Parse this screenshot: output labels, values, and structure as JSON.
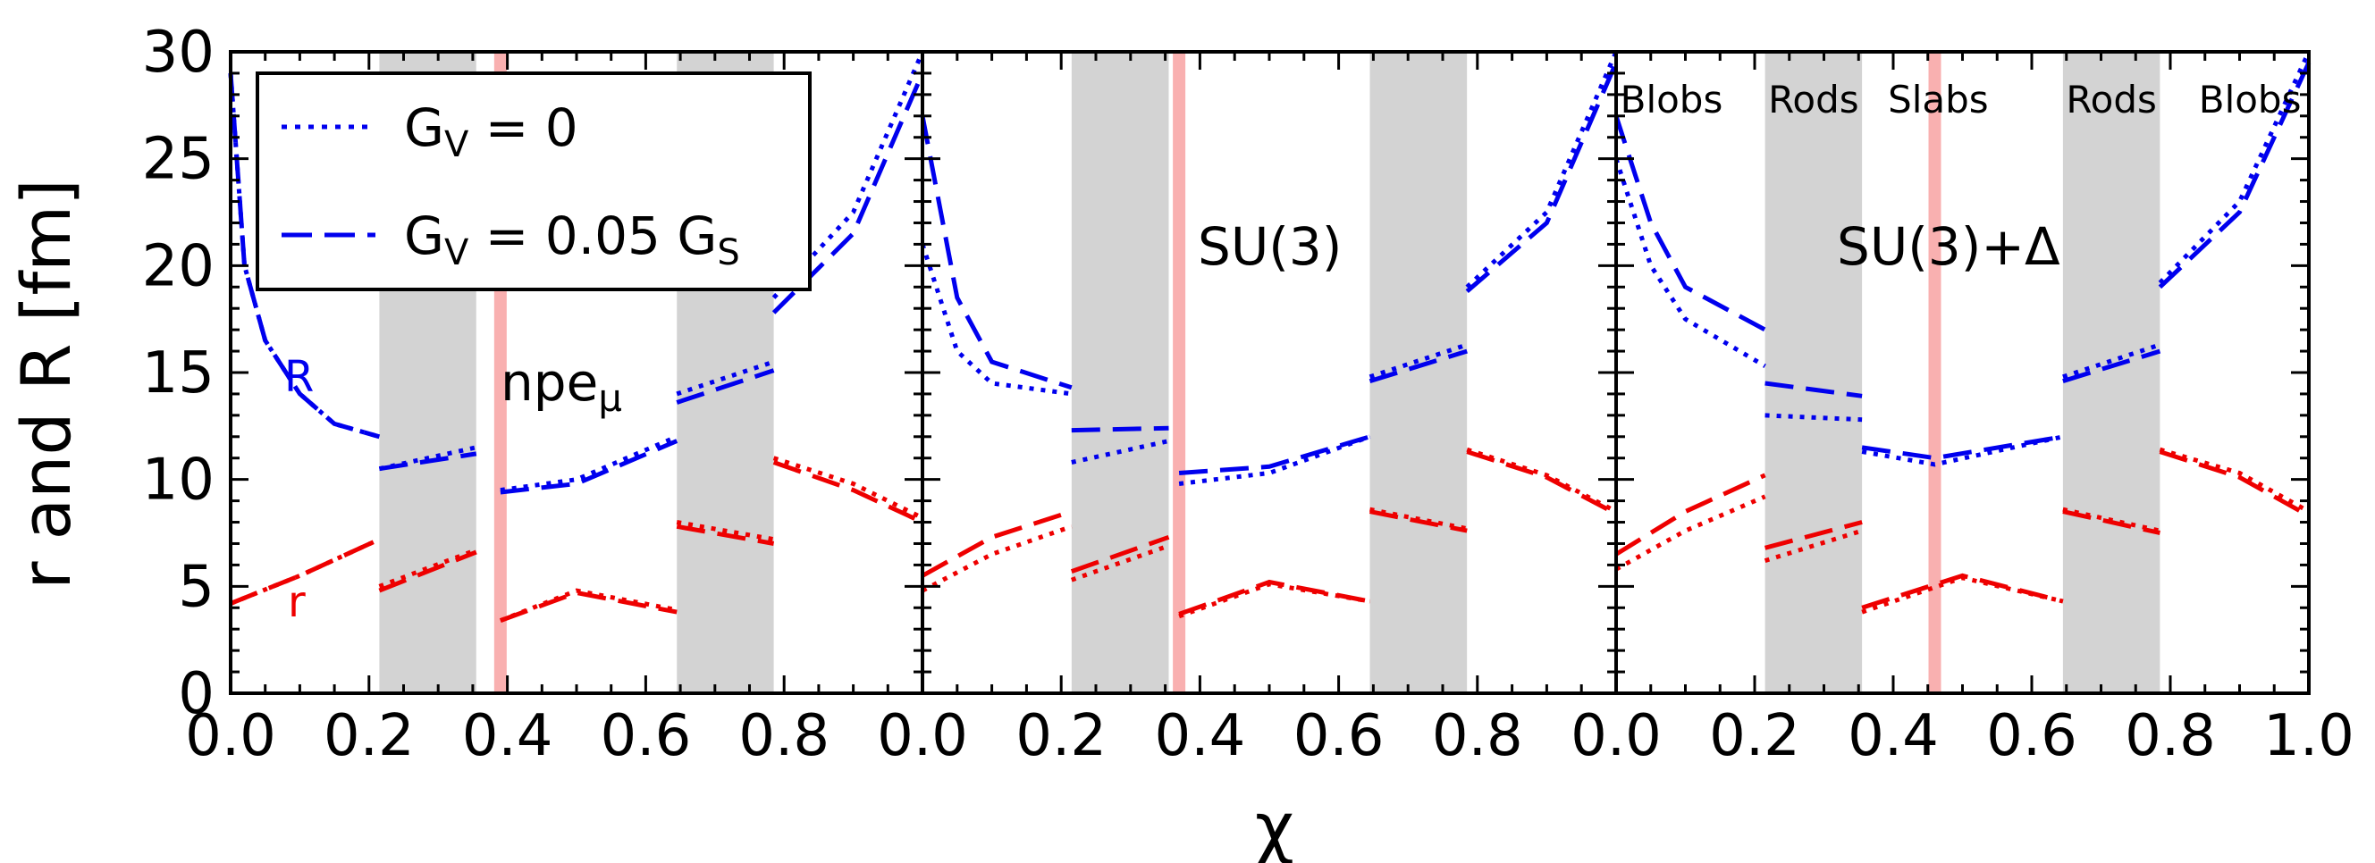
{
  "chart_data": {
    "type": "line",
    "ylabel": "r and R [fm]",
    "xlabel": "χ",
    "ylim": [
      0,
      30
    ],
    "yticks": [
      0,
      5,
      10,
      15,
      20,
      25,
      30
    ],
    "xticks": [
      0.0,
      0.2,
      0.4,
      0.6,
      0.8
    ],
    "xticks_last_panel": [
      0.0,
      0.2,
      0.4,
      0.6,
      0.8,
      1.0
    ],
    "xlim": [
      0,
      1
    ],
    "colors": {
      "R": "#0000ee",
      "r": "#ee0000",
      "shade": "#d3d3d3",
      "center_line": "#f9b0b0"
    },
    "legend": {
      "entries": [
        {
          "label": "G",
          "sub": "V",
          "rest": " = 0",
          "style": "dotted"
        },
        {
          "label": "G",
          "sub": "V",
          "rest": " = 0.05 G",
          "sub2": "S",
          "style": "dashed"
        }
      ]
    },
    "region_labels": [
      "Blobs",
      "Rods",
      "Slabs",
      "Rods",
      "Blobs"
    ],
    "panels": [
      {
        "label": "npe",
        "label_sub": "μ",
        "curve_label_R": "R",
        "curve_label_r": "r",
        "shaded": [
          [
            0.215,
            0.355
          ],
          [
            0.645,
            0.785
          ]
        ],
        "center": 0.39,
        "series": [
          {
            "name": "R, G_V = 0",
            "color": "R",
            "style": "dotted",
            "segments": [
              [
                [
                  0.0,
                  29
                ],
                [
                  0.02,
                  20
                ],
                [
                  0.05,
                  16.5
                ],
                [
                  0.1,
                  14
                ],
                [
                  0.15,
                  12.6
                ],
                [
                  0.215,
                  12
                ]
              ],
              [
                [
                  0.215,
                  10.5
                ],
                [
                  0.355,
                  11.5
                ]
              ],
              [
                [
                  0.39,
                  9.5
                ],
                [
                  0.5,
                  10
                ],
                [
                  0.645,
                  12
                ]
              ],
              [
                [
                  0.645,
                  14
                ],
                [
                  0.785,
                  15.5
                ]
              ],
              [
                [
                  0.785,
                  18.5
                ],
                [
                  0.9,
                  22.5
                ],
                [
                  1.0,
                  30
                ]
              ]
            ]
          },
          {
            "name": "R, G_V = 0.05 G_S",
            "color": "R",
            "style": "dashed",
            "segments": [
              [
                [
                  0.0,
                  29
                ],
                [
                  0.02,
                  20
                ],
                [
                  0.05,
                  16.5
                ],
                [
                  0.1,
                  14
                ],
                [
                  0.15,
                  12.6
                ],
                [
                  0.215,
                  12
                ]
              ],
              [
                [
                  0.215,
                  10.5
                ],
                [
                  0.355,
                  11.2
                ]
              ],
              [
                [
                  0.39,
                  9.4
                ],
                [
                  0.5,
                  9.8
                ],
                [
                  0.645,
                  11.8
                ]
              ],
              [
                [
                  0.645,
                  13.6
                ],
                [
                  0.785,
                  15.1
                ]
              ],
              [
                [
                  0.785,
                  17.8
                ],
                [
                  0.9,
                  21.5
                ],
                [
                  1.0,
                  29
                ]
              ]
            ]
          },
          {
            "name": "r, G_V = 0",
            "color": "r",
            "style": "dotted",
            "segments": [
              [
                [
                  0.0,
                  4.2
                ],
                [
                  0.1,
                  5.5
                ],
                [
                  0.215,
                  7.2
                ]
              ],
              [
                [
                  0.215,
                  5
                ],
                [
                  0.355,
                  6.7
                ]
              ],
              [
                [
                  0.39,
                  3.4
                ],
                [
                  0.5,
                  4.8
                ],
                [
                  0.645,
                  3.9
                ]
              ],
              [
                [
                  0.645,
                  8
                ],
                [
                  0.785,
                  7.2
                ]
              ],
              [
                [
                  0.785,
                  11
                ],
                [
                  0.9,
                  9.8
                ],
                [
                  1.0,
                  8.2
                ]
              ]
            ]
          },
          {
            "name": "r, G_V = 0.05 G_S",
            "color": "r",
            "style": "dashed",
            "segments": [
              [
                [
                  0.0,
                  4.2
                ],
                [
                  0.1,
                  5.5
                ],
                [
                  0.215,
                  7.2
                ]
              ],
              [
                [
                  0.215,
                  4.8
                ],
                [
                  0.355,
                  6.6
                ]
              ],
              [
                [
                  0.39,
                  3.4
                ],
                [
                  0.5,
                  4.7
                ],
                [
                  0.645,
                  3.8
                ]
              ],
              [
                [
                  0.645,
                  7.8
                ],
                [
                  0.785,
                  7.0
                ]
              ],
              [
                [
                  0.785,
                  10.8
                ],
                [
                  0.9,
                  9.5
                ],
                [
                  1.0,
                  8.0
                ]
              ]
            ]
          }
        ]
      },
      {
        "label": "SU(3)",
        "shaded": [
          [
            0.215,
            0.355
          ],
          [
            0.645,
            0.785
          ]
        ],
        "center": 0.37,
        "series": [
          {
            "name": "R, G_V = 0",
            "color": "R",
            "style": "dotted",
            "segments": [
              [
                [
                  0.0,
                  21
                ],
                [
                  0.05,
                  16
                ],
                [
                  0.1,
                  14.5
                ],
                [
                  0.215,
                  14
                ]
              ],
              [
                [
                  0.215,
                  10.8
                ],
                [
                  0.355,
                  11.8
                ]
              ],
              [
                [
                  0.37,
                  9.8
                ],
                [
                  0.5,
                  10.3
                ],
                [
                  0.645,
                  12
                ]
              ],
              [
                [
                  0.645,
                  14.8
                ],
                [
                  0.785,
                  16.3
                ]
              ],
              [
                [
                  0.785,
                  19
                ],
                [
                  0.9,
                  22.5
                ],
                [
                  1.0,
                  30
                ]
              ]
            ]
          },
          {
            "name": "R, G_V = 0.05 G_S",
            "color": "R",
            "style": "dashed",
            "segments": [
              [
                [
                  0.0,
                  27
                ],
                [
                  0.05,
                  18.5
                ],
                [
                  0.1,
                  15.5
                ],
                [
                  0.215,
                  14.3
                ]
              ],
              [
                [
                  0.215,
                  12.3
                ],
                [
                  0.355,
                  12.4
                ]
              ],
              [
                [
                  0.37,
                  10.3
                ],
                [
                  0.5,
                  10.6
                ],
                [
                  0.645,
                  12
                ]
              ],
              [
                [
                  0.645,
                  14.6
                ],
                [
                  0.785,
                  16
                ]
              ],
              [
                [
                  0.785,
                  18.8
                ],
                [
                  0.9,
                  22
                ],
                [
                  1.0,
                  29.5
                ]
              ]
            ]
          },
          {
            "name": "r, G_V = 0",
            "color": "r",
            "style": "dotted",
            "segments": [
              [
                [
                  0.0,
                  4.8
                ],
                [
                  0.1,
                  6.5
                ],
                [
                  0.215,
                  7.8
                ]
              ],
              [
                [
                  0.215,
                  5.3
                ],
                [
                  0.355,
                  6.9
                ]
              ],
              [
                [
                  0.37,
                  3.6
                ],
                [
                  0.5,
                  5.1
                ],
                [
                  0.645,
                  4.3
                ]
              ],
              [
                [
                  0.645,
                  8.6
                ],
                [
                  0.785,
                  7.7
                ]
              ],
              [
                [
                  0.785,
                  11.4
                ],
                [
                  0.9,
                  10.2
                ],
                [
                  1.0,
                  8.5
                ]
              ]
            ]
          },
          {
            "name": "r, G_V = 0.05 G_S",
            "color": "r",
            "style": "dashed",
            "segments": [
              [
                [
                  0.0,
                  5.5
                ],
                [
                  0.1,
                  7.3
                ],
                [
                  0.215,
                  8.5
                ]
              ],
              [
                [
                  0.215,
                  5.7
                ],
                [
                  0.355,
                  7.3
                ]
              ],
              [
                [
                  0.37,
                  3.7
                ],
                [
                  0.5,
                  5.2
                ],
                [
                  0.645,
                  4.3
                ]
              ],
              [
                [
                  0.645,
                  8.5
                ],
                [
                  0.785,
                  7.6
                ]
              ],
              [
                [
                  0.785,
                  11.3
                ],
                [
                  0.9,
                  10.1
                ],
                [
                  1.0,
                  8.4
                ]
              ]
            ]
          }
        ]
      },
      {
        "label": "SU(3)+Δ",
        "shaded": [
          [
            0.215,
            0.355
          ],
          [
            0.645,
            0.785
          ]
        ],
        "center": 0.46,
        "series": [
          {
            "name": "R, G_V = 0",
            "color": "R",
            "style": "dotted",
            "segments": [
              [
                [
                  0.0,
                  25
                ],
                [
                  0.05,
                  20
                ],
                [
                  0.1,
                  17.5
                ],
                [
                  0.215,
                  15.3
                ]
              ],
              [
                [
                  0.215,
                  13
                ],
                [
                  0.355,
                  12.8
                ]
              ],
              [
                [
                  0.355,
                  11.3
                ],
                [
                  0.46,
                  10.7
                ],
                [
                  0.645,
                  12
                ]
              ],
              [
                [
                  0.645,
                  14.8
                ],
                [
                  0.785,
                  16.3
                ]
              ],
              [
                [
                  0.785,
                  19.2
                ],
                [
                  0.9,
                  23
                ],
                [
                  1.0,
                  30
                ]
              ]
            ]
          },
          {
            "name": "R, G_V = 0.05 G_S",
            "color": "R",
            "style": "dashed",
            "segments": [
              [
                [
                  0.0,
                  27
                ],
                [
                  0.05,
                  22
                ],
                [
                  0.1,
                  19
                ],
                [
                  0.215,
                  17
                ]
              ],
              [
                [
                  0.215,
                  14.5
                ],
                [
                  0.355,
                  13.9
                ]
              ],
              [
                [
                  0.355,
                  11.5
                ],
                [
                  0.46,
                  11.0
                ],
                [
                  0.645,
                  12
                ]
              ],
              [
                [
                  0.645,
                  14.6
                ],
                [
                  0.785,
                  16.0
                ]
              ],
              [
                [
                  0.785,
                  19
                ],
                [
                  0.9,
                  22.5
                ],
                [
                  1.0,
                  29.5
                ]
              ]
            ]
          },
          {
            "name": "r, G_V = 0",
            "color": "r",
            "style": "dotted",
            "segments": [
              [
                [
                  0.0,
                  5.8
                ],
                [
                  0.1,
                  7.6
                ],
                [
                  0.215,
                  9.2
                ]
              ],
              [
                [
                  0.215,
                  6.2
                ],
                [
                  0.355,
                  7.6
                ]
              ],
              [
                [
                  0.355,
                  3.8
                ],
                [
                  0.5,
                  5.4
                ],
                [
                  0.645,
                  4.3
                ]
              ],
              [
                [
                  0.645,
                  8.6
                ],
                [
                  0.785,
                  7.6
                ]
              ],
              [
                [
                  0.785,
                  11.4
                ],
                [
                  0.9,
                  10.3
                ],
                [
                  1.0,
                  8.5
                ]
              ]
            ]
          },
          {
            "name": "r, G_V = 0.05 G_S",
            "color": "r",
            "style": "dashed",
            "segments": [
              [
                [
                  0.0,
                  6.5
                ],
                [
                  0.1,
                  8.5
                ],
                [
                  0.215,
                  10.2
                ]
              ],
              [
                [
                  0.215,
                  6.8
                ],
                [
                  0.355,
                  8.0
                ]
              ],
              [
                [
                  0.355,
                  4.0
                ],
                [
                  0.5,
                  5.5
                ],
                [
                  0.645,
                  4.3
                ]
              ],
              [
                [
                  0.645,
                  8.5
                ],
                [
                  0.785,
                  7.5
                ]
              ],
              [
                [
                  0.785,
                  11.3
                ],
                [
                  0.9,
                  10.1
                ],
                [
                  1.0,
                  8.3
                ]
              ]
            ]
          }
        ]
      }
    ]
  }
}
